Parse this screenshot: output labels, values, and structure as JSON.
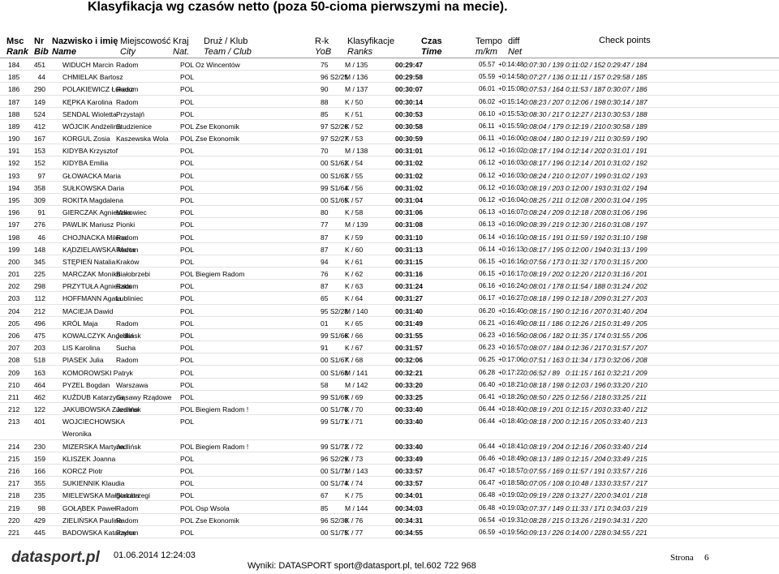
{
  "header": {
    "title": "Klasyfikacja wg czasów netto (poza 50-cioma pierwszymi na mecie).",
    "columns": [
      [
        "Msc",
        "Rank"
      ],
      [
        "Nr",
        "Bib"
      ],
      [
        "Nazwisko i imię",
        "Name"
      ],
      [
        "Miejscowość",
        "City"
      ],
      [
        "Kraj",
        "Nat."
      ],
      [
        "Druż / Klub",
        "Team / Club"
      ],
      [
        "R-k",
        "YoB"
      ],
      [
        "Klasyfikacje",
        "Ranks"
      ],
      [
        "Czas",
        "Time"
      ],
      [
        "Tempo",
        "m/km"
      ],
      [
        "diff",
        "Net"
      ],
      [
        "Check points"
      ]
    ]
  },
  "table": {
    "rows": [
      {
        "rank": "184",
        "bib": "451",
        "name": "WIDUCH Marcin",
        "city": "Radom",
        "nat": "POL",
        "team": "Oz Wincentów",
        "yob": "75",
        "ranks": "M / 135",
        "time": "00:29:47",
        "tempo": "05.57",
        "diff": "+0:14:48",
        "cp1": "0:07:30 / 139",
        "cp2": "0:11:02 / 152",
        "cp3": "0:29:47 / 184"
      },
      {
        "rank": "185",
        "bib": "44",
        "name": "CHMIELAK Bartosz",
        "nat": "POL",
        "yob": "96 S2/25",
        "ranks": "M / 136",
        "time": "00:29:58",
        "tempo": "05.59",
        "diff": "+0:14:58",
        "cp1": "0:07:27 / 136",
        "cp2": "0:11:11 / 157",
        "cp3": "0:29:58 / 185"
      },
      {
        "rank": "186",
        "bib": "290",
        "name": "POLAKIEWICZ Łukasz",
        "city": "Radom",
        "nat": "POL",
        "yob": "90",
        "ranks": "M / 137",
        "time": "00:30:07",
        "tempo": "06.01",
        "diff": "+0:15:08",
        "cp1": "0:07:53 / 164",
        "cp2": "0:11:53 / 187",
        "cp3": "0:30:07 / 186"
      },
      {
        "rank": "187",
        "bib": "149",
        "name": "KĘPKA Karolina",
        "city": "Radom",
        "nat": "POL",
        "yob": "88",
        "ranks": "K / 50",
        "time": "00:30:14",
        "tempo": "06.02",
        "diff": "+0:15:14",
        "cp1": "0:08:23 / 207",
        "cp2": "0:12:06 / 198",
        "cp3": "0:30:14 / 187"
      },
      {
        "rank": "188",
        "bib": "524",
        "name": "SENDAL Wioletta",
        "city": "Przystajń",
        "nat": "POL",
        "yob": "85",
        "ranks": "K / 51",
        "time": "00:30:53",
        "tempo": "06.10",
        "diff": "+0:15:53",
        "cp1": "0:08:30 / 217",
        "cp2": "0:12:27 / 213",
        "cp3": "0:30:53 / 188"
      },
      {
        "rank": "189",
        "bib": "412",
        "name": "WÓJCIK Andżelina",
        "city": "Studzienice",
        "nat": "POL",
        "team": "Zse Ekonomik",
        "yob": "97 S2/26",
        "ranks": "K / 52",
        "time": "00:30:58",
        "tempo": "06.11",
        "diff": "+0:15:59",
        "cp1": "0:08:04 / 179",
        "cp2": "0:12:19 / 210",
        "cp3": "0:30:58 / 189"
      },
      {
        "rank": "190",
        "bib": "167",
        "name": "KORGUL Zosia",
        "city": "Kaszewska Wola",
        "nat": "POL",
        "team": "Zse Ekonomik",
        "yob": "97 S2/27",
        "ranks": "K / 53",
        "time": "00:30:59",
        "tempo": "06.11",
        "diff": "+0:16:00",
        "cp1": "0:08:04 / 180",
        "cp2": "0:12:19 / 211",
        "cp3": "0:30:59 / 190"
      },
      {
        "rank": "191",
        "bib": "153",
        "name": "KIDYBA Krzysztof",
        "nat": "POL",
        "yob": "70",
        "ranks": "M / 138",
        "time": "00:31:01",
        "tempo": "06.12",
        "diff": "+0:16:02",
        "cp1": "0:08:17 / 194",
        "cp2": "0:12:14 / 202",
        "cp3": "0:31:01 / 191"
      },
      {
        "rank": "192",
        "bib": "152",
        "name": "KIDYBA Emilia",
        "nat": "POL",
        "yob": "00 S1/62",
        "ranks": "K / 54",
        "time": "00:31:02",
        "tempo": "06.12",
        "diff": "+0:16:03",
        "cp1": "0:08:17 / 196",
        "cp2": "0:12:14 / 201",
        "cp3": "0:31:02 / 192"
      },
      {
        "rank": "193",
        "bib": "97",
        "name": "GŁOWACKA Maria",
        "nat": "POL",
        "yob": "00 S1/63",
        "ranks": "K / 55",
        "time": "00:31:02",
        "tempo": "06.12",
        "diff": "+0:16:03",
        "cp1": "0:08:24 / 210",
        "cp2": "0:12:07 / 199",
        "cp3": "0:31:02 / 193"
      },
      {
        "rank": "194",
        "bib": "358",
        "name": "SUŁKOWSKA Daria",
        "nat": "POL",
        "yob": "99 S1/64",
        "ranks": "K / 56",
        "time": "00:31:02",
        "tempo": "06.12",
        "diff": "+0:16:03",
        "cp1": "0:08:19 / 203",
        "cp2": "0:12:00 / 193",
        "cp3": "0:31:02 / 194"
      },
      {
        "rank": "195",
        "bib": "309",
        "name": "ROKITA Magdalena",
        "nat": "POL",
        "yob": "00 S1/65",
        "ranks": "K / 57",
        "time": "00:31:04",
        "tempo": "06.12",
        "diff": "+0:16:04",
        "cp1": "0:08:25 / 211",
        "cp2": "0:12:08 / 200",
        "cp3": "0:31:04 / 195"
      },
      {
        "rank": "196",
        "bib": "91",
        "name": "GIERCZAK Agnieszka",
        "city": "Makowiec",
        "nat": "POL",
        "yob": "80",
        "ranks": "K / 58",
        "time": "00:31:06",
        "tempo": "06.13",
        "diff": "+0:16:07",
        "cp1": "0:08:24 / 209",
        "cp2": "0:12:18 / 208",
        "cp3": "0:31:06 / 196"
      },
      {
        "rank": "197",
        "bib": "276",
        "name": "PAWLIK Mariusz",
        "city": "Pionki",
        "nat": "POL",
        "yob": "77",
        "ranks": "M / 139",
        "time": "00:31:08",
        "tempo": "06.13",
        "diff": "+0:16:09",
        "cp1": "0:08:39 / 219",
        "cp2": "0:12:30 / 216",
        "cp3": "0:31:08 / 197"
      },
      {
        "rank": "198",
        "bib": "46",
        "name": "CHOJNACKA Milena",
        "city": "Radom",
        "nat": "POL",
        "yob": "87",
        "ranks": "K / 59",
        "time": "00:31:10",
        "tempo": "06.14",
        "diff": "+0:16:10",
        "cp1": "0:08:15 / 191",
        "cp2": "0:11:59 / 192",
        "cp3": "0:31:10 / 198"
      },
      {
        "rank": "199",
        "bib": "148",
        "name": "KĄDZIELAWSKA Marta",
        "city": "Radom",
        "nat": "POL",
        "yob": "87",
        "ranks": "K / 60",
        "time": "00:31:13",
        "tempo": "06.14",
        "diff": "+0:16:13",
        "cp1": "0:08:17 / 195",
        "cp2": "0:12:00 / 194",
        "cp3": "0:31:13 / 199"
      },
      {
        "rank": "200",
        "bib": "345",
        "name": "STĘPIEŃ Natalia",
        "city": "Kraków",
        "nat": "POL",
        "yob": "94",
        "ranks": "K / 61",
        "time": "00:31:15",
        "tempo": "06.15",
        "diff": "+0:16:16",
        "cp1": "0:07:56 / 173",
        "cp2": "0:11:32 / 170",
        "cp3": "0:31:15 / 200"
      },
      {
        "rank": "201",
        "bib": "225",
        "name": "MARCZAK Monika",
        "city": "Białobrzebi",
        "nat": "POL",
        "team": "Biegiem Radom",
        "yob": "76",
        "ranks": "K / 62",
        "time": "00:31:16",
        "tempo": "06.15",
        "diff": "+0:16:17",
        "cp1": "0:08:19 / 202",
        "cp2": "0:12:20 / 212",
        "cp3": "0:31:16 / 201"
      },
      {
        "rank": "202",
        "bib": "298",
        "name": "PRZYTUŁA Agnieszka",
        "city": "Radom",
        "nat": "POL",
        "yob": "87",
        "ranks": "K / 63",
        "time": "00:31:24",
        "tempo": "06.16",
        "diff": "+0:16:24",
        "cp1": "0:08:01 / 178",
        "cp2": "0:11:54 / 188",
        "cp3": "0:31:24 / 202"
      },
      {
        "rank": "203",
        "bib": "112",
        "name": "HOFFMANN Agata",
        "city": "Lubliniec",
        "nat": "POL",
        "yob": "65",
        "ranks": "K / 64",
        "time": "00:31:27",
        "tempo": "06.17",
        "diff": "+0:16:27",
        "cp1": "0:08:18 / 199",
        "cp2": "0:12:18 / 209",
        "cp3": "0:31:27 / 203"
      },
      {
        "rank": "204",
        "bib": "212",
        "name": "MACIEJA Dawid",
        "nat": "POL",
        "yob": "95 S2/28",
        "ranks": "M / 140",
        "time": "00:31:40",
        "tempo": "06.20",
        "diff": "+0:16:40",
        "cp1": "0:08:15 / 190",
        "cp2": "0:12:16 / 207",
        "cp3": "0:31:40 / 204"
      },
      {
        "rank": "205",
        "bib": "496",
        "name": "KRÓL Maja",
        "city": "Radom",
        "nat": "POL",
        "yob": "01",
        "ranks": "K / 65",
        "time": "00:31:49",
        "tempo": "06.21",
        "diff": "+0:16:49",
        "cp1": "0:08:11 / 186",
        "cp2": "0:12:26 / 215",
        "cp3": "0:31:49 / 205"
      },
      {
        "rank": "206",
        "bib": "475",
        "name": "KOWALCZYK Angelika",
        "city": "Jedlińsk",
        "nat": "POL",
        "yob": "99 S1/66",
        "ranks": "K / 66",
        "time": "00:31:55",
        "tempo": "06.23",
        "diff": "+0:16:56",
        "cp1": "0:08:06 / 182",
        "cp2": "0:11:35 / 174",
        "cp3": "0:31:55 / 206"
      },
      {
        "rank": "207",
        "bib": "203",
        "name": "LIS Karolina",
        "city": "Sucha",
        "nat": "POL",
        "yob": "91",
        "ranks": "K / 67",
        "time": "00:31:57",
        "tempo": "06.23",
        "diff": "+0:16:57",
        "cp1": "0:08:07 / 184",
        "cp2": "0:12:36 / 217",
        "cp3": "0:31:57 / 207"
      },
      {
        "rank": "208",
        "bib": "518",
        "name": "PIASEK Julia",
        "city": "Radom",
        "nat": "POL",
        "yob": "00 S1/67",
        "ranks": "K / 68",
        "time": "00:32:06",
        "tempo": "06.25",
        "diff": "+0:17:06",
        "cp1": "0:07:51 / 163",
        "cp2": "0:11:34 / 173",
        "cp3": "0:32:06 / 208"
      },
      {
        "rank": "209",
        "bib": "163",
        "name": "KOMOROWSKI Patryk",
        "nat": "POL",
        "yob": "00 S1/68",
        "ranks": "M / 141",
        "time": "00:32:21",
        "tempo": "06.28",
        "diff": "+0:17:22",
        "cp1": "0:06:52 / 89",
        "cp2": "0:11:15 / 161",
        "cp3": "0:32:21 / 209"
      },
      {
        "rank": "210",
        "bib": "464",
        "name": "PYZEL Bogdan",
        "city": "Warszawa",
        "nat": "POL",
        "yob": "58",
        "ranks": "M / 142",
        "time": "00:33:20",
        "tempo": "06.40",
        "diff": "+0:18:21",
        "cp1": "0:08:18 / 198",
        "cp2": "0:12:03 / 196",
        "cp3": "0:33:20 / 210"
      },
      {
        "rank": "211",
        "bib": "462",
        "name": "KUŹDUB Katarzyna",
        "city": "Gąsawy Rządowe",
        "nat": "POL",
        "yob": "99 S1/69",
        "ranks": "K / 69",
        "time": "00:33:25",
        "tempo": "06.41",
        "diff": "+0:18:26",
        "cp1": "0:08:50 / 225",
        "cp2": "0:12:56 / 218",
        "cp3": "0:33:25 / 211"
      },
      {
        "rank": "212",
        "bib": "122",
        "name": "JAKUBOWSKA Zuzanna",
        "city": "Jedlińsk",
        "nat": "POL",
        "team": "Biegiem Radom !",
        "yob": "00 S1/70",
        "ranks": "K / 70",
        "time": "00:33:40",
        "tempo": "06.44",
        "diff": "+0:18:40",
        "cp1": "0:08:19 / 201",
        "cp2": "0:12:15 / 203",
        "cp3": "0:33:40 / 212"
      },
      {
        "rank": "213",
        "bib": "401",
        "name": "WOJCIECHOWSKA",
        "name2": "Weronika",
        "nat": "POL",
        "yob": "99 S1/71",
        "ranks": "K / 71",
        "time": "00:33:40",
        "tempo": "06.44",
        "diff": "+0:18:40",
        "cp1": "0:08:18 / 200",
        "cp2": "0:12:15 / 205",
        "cp3": "0:33:40 / 213"
      },
      {
        "rank": "214",
        "bib": "230",
        "name": "MIZERSKA Martyna",
        "city": "Jedlińsk",
        "nat": "POL",
        "team": "Biegiem Radom !",
        "yob": "99 S1/72",
        "ranks": "K / 72",
        "time": "00:33:40",
        "tempo": "06.44",
        "diff": "+0:18:41",
        "cp1": "0:08:19 / 204",
        "cp2": "0:12:16 / 206",
        "cp3": "0:33:40 / 214"
      },
      {
        "rank": "215",
        "bib": "159",
        "name": "KLISZEK Joanna",
        "nat": "POL",
        "yob": "96 S2/29",
        "ranks": "K / 73",
        "time": "00:33:49",
        "tempo": "06.46",
        "diff": "+0:18:49",
        "cp1": "0:08:13 / 189",
        "cp2": "0:12:15 / 204",
        "cp3": "0:33:49 / 215"
      },
      {
        "rank": "216",
        "bib": "166",
        "name": "KORCZ Piotr",
        "nat": "POL",
        "yob": "00 S1/73",
        "ranks": "M / 143",
        "time": "00:33:57",
        "tempo": "06.47",
        "diff": "+0:18:57",
        "cp1": "0:07:55 / 169",
        "cp2": "0:11:57 / 191",
        "cp3": "0:33:57 / 216"
      },
      {
        "rank": "217",
        "bib": "355",
        "name": "SUKIENNIK Klaudia",
        "nat": "POL",
        "yob": "00 S1/74",
        "ranks": "K / 74",
        "time": "00:33:57",
        "tempo": "06.47",
        "diff": "+0:18:58",
        "cp1": "0:07:05 / 108",
        "cp2": "0:10:48 / 133",
        "cp3": "0:33:57 / 217"
      },
      {
        "rank": "218",
        "bib": "235",
        "name": "MIELEWSKA Małgorzata",
        "city": "Białobrzegi",
        "nat": "POL",
        "yob": "67",
        "ranks": "K / 75",
        "time": "00:34:01",
        "tempo": "06.48",
        "diff": "+0:19:02",
        "cp1": "0:09:19 / 228",
        "cp2": "0:13:27 / 220",
        "cp3": "0:34:01 / 218"
      },
      {
        "rank": "219",
        "bib": "98",
        "name": "GOŁĄBEK Paweł",
        "city": "Radom",
        "nat": "POL",
        "team": "Osp Wsola",
        "yob": "85",
        "ranks": "M / 144",
        "time": "00:34:03",
        "tempo": "06.48",
        "diff": "+0:19:03",
        "cp1": "0:07:37 / 149",
        "cp2": "0:11:33 / 171",
        "cp3": "0:34:03 / 219"
      },
      {
        "rank": "220",
        "bib": "429",
        "name": "ZIELIŃSKA Paulina",
        "city": "Radom",
        "nat": "POL",
        "team": "Zse Ekonomik",
        "yob": "96 S2/30",
        "ranks": "K / 76",
        "time": "00:34:31",
        "tempo": "06.54",
        "diff": "+0:19:31",
        "cp1": "0:08:28 / 215",
        "cp2": "0:13:26 / 219",
        "cp3": "0:34:31 / 220"
      },
      {
        "rank": "221",
        "bib": "445",
        "name": "BADOWSKA Katarzyna",
        "city": "Radom",
        "nat": "POL",
        "yob": "00 S1/75",
        "ranks": "K / 77",
        "time": "00:34:55",
        "tempo": "06.59",
        "diff": "+0:19:56",
        "cp1": "0:09:13 / 226",
        "cp2": "0:14:00 / 228",
        "cp3": "0:34:55 / 221"
      }
    ]
  },
  "footer": {
    "logo": "datasport.pl",
    "date": "01.06.2014 12:24:03",
    "contact": "Wyniki: DATASPORT sport@datasport.pl, tel.602 722 968",
    "page_label": "Strona",
    "page": "6"
  }
}
